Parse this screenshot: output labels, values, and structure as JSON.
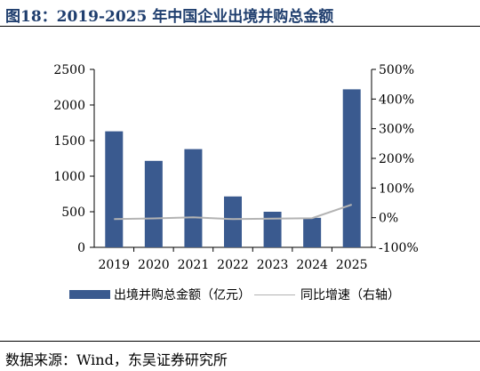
{
  "figure": {
    "title": "图18：2019-2025 年中国企业出境并购总金额",
    "source": "数据来源：Wind，东吴证券研究所"
  },
  "colors": {
    "bar": "#3a5a8f",
    "line": "#b3b3b3",
    "title": "#1f3e6e"
  },
  "chart_data": {
    "type": "bar",
    "categories": [
      "2019",
      "2020",
      "2021",
      "2022",
      "2023",
      "2024",
      "2025"
    ],
    "series": [
      {
        "name": "出境并购总金额（亿元）",
        "type": "bar",
        "axis": "left",
        "values": [
          1630,
          1215,
          1380,
          715,
          500,
          415,
          2220
        ]
      },
      {
        "name": "同比增速（右轴）",
        "type": "line",
        "axis": "right",
        "values": [
          -0.05,
          -0.025,
          0.012,
          -0.05,
          -0.03,
          -0.015,
          0.44
        ]
      }
    ],
    "y_left": {
      "ylim": [
        0,
        2500
      ],
      "ticks": [
        "0",
        "500",
        "1000",
        "1500",
        "2000",
        "2500"
      ]
    },
    "y_right": {
      "ylim": [
        -1.0,
        5.0
      ],
      "ticks": [
        "-100%",
        "0%",
        "100%",
        "200%",
        "300%",
        "400%",
        "500%"
      ]
    },
    "legend": {
      "position": "bottom"
    },
    "grid": false
  }
}
